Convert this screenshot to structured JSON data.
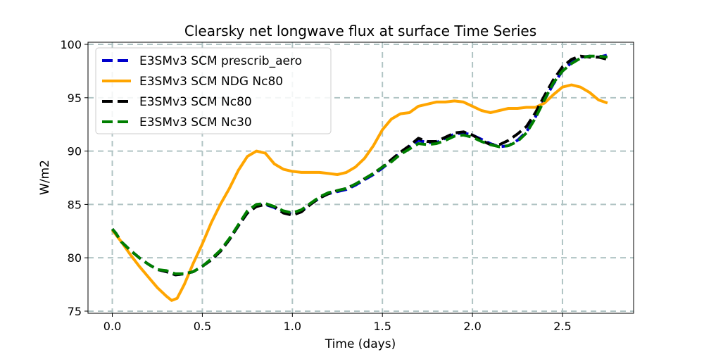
{
  "chart_data": {
    "type": "line",
    "title": "Clearsky net longwave flux at surface Time Series",
    "xlabel": "Time (days)",
    "ylabel": "W/m2",
    "xlim": [
      -0.135,
      2.895
    ],
    "ylim": [
      74.8,
      100.2
    ],
    "xticks": [
      0.0,
      0.5,
      1.0,
      1.5,
      2.0,
      2.5
    ],
    "xtick_labels": [
      "0.0",
      "0.5",
      "1.0",
      "1.5",
      "2.0",
      "2.5"
    ],
    "yticks": [
      75,
      80,
      85,
      90,
      95,
      100
    ],
    "ytick_labels": [
      "75",
      "80",
      "85",
      "90",
      "95",
      "100"
    ],
    "grid": true,
    "legend_position": "upper-left",
    "series": [
      {
        "name": "E3SMv3 SCM prescrib_aero",
        "color": "#0000cc",
        "style": "dashed",
        "x": [
          0.0,
          0.02,
          0.05,
          0.1,
          0.15,
          0.2,
          0.25,
          0.3,
          0.35,
          0.4,
          0.45,
          0.5,
          0.55,
          0.6,
          0.65,
          0.7,
          0.75,
          0.8,
          0.85,
          0.9,
          0.95,
          1.0,
          1.05,
          1.1,
          1.15,
          1.2,
          1.25,
          1.3,
          1.35,
          1.4,
          1.45,
          1.5,
          1.55,
          1.6,
          1.65,
          1.7,
          1.75,
          1.8,
          1.85,
          1.9,
          1.95,
          2.0,
          2.05,
          2.1,
          2.15,
          2.2,
          2.25,
          2.3,
          2.35,
          2.4,
          2.45,
          2.5,
          2.55,
          2.6,
          2.65,
          2.7,
          2.75
        ],
        "values": [
          82.7,
          82.3,
          81.5,
          80.7,
          80.0,
          79.4,
          78.9,
          78.7,
          78.4,
          78.5,
          78.7,
          79.2,
          79.8,
          80.6,
          81.7,
          83.0,
          84.2,
          84.9,
          85.0,
          84.7,
          84.3,
          84.1,
          84.4,
          85.0,
          85.6,
          86.0,
          86.2,
          86.4,
          86.8,
          87.3,
          87.8,
          88.4,
          89.1,
          89.8,
          90.4,
          91.0,
          90.8,
          90.8,
          91.2,
          91.6,
          91.7,
          91.5,
          91.1,
          90.7,
          90.4,
          90.5,
          91.0,
          91.8,
          93.2,
          94.8,
          96.3,
          97.5,
          98.3,
          98.8,
          98.9,
          98.8,
          99.0
        ]
      },
      {
        "name": "E3SMv3 SCM NDG Nc80",
        "color": "#ffa500",
        "style": "solid",
        "x": [
          0.0,
          0.05,
          0.1,
          0.15,
          0.2,
          0.25,
          0.3,
          0.33,
          0.36,
          0.4,
          0.45,
          0.5,
          0.55,
          0.6,
          0.65,
          0.7,
          0.75,
          0.8,
          0.85,
          0.9,
          0.95,
          1.0,
          1.05,
          1.1,
          1.15,
          1.2,
          1.25,
          1.3,
          1.35,
          1.4,
          1.45,
          1.5,
          1.55,
          1.6,
          1.65,
          1.7,
          1.75,
          1.8,
          1.85,
          1.9,
          1.95,
          2.0,
          2.05,
          2.1,
          2.15,
          2.2,
          2.25,
          2.3,
          2.35,
          2.4,
          2.45,
          2.5,
          2.55,
          2.6,
          2.65,
          2.7,
          2.75
        ],
        "values": [
          82.6,
          81.5,
          80.3,
          79.2,
          78.2,
          77.2,
          76.4,
          76.0,
          76.2,
          77.5,
          79.5,
          81.3,
          83.3,
          85.0,
          86.5,
          88.2,
          89.5,
          90.0,
          89.8,
          88.8,
          88.3,
          88.1,
          88.0,
          88.0,
          88.0,
          87.9,
          87.8,
          88.0,
          88.5,
          89.3,
          90.5,
          92.0,
          93.0,
          93.5,
          93.6,
          94.2,
          94.4,
          94.6,
          94.6,
          94.7,
          94.6,
          94.2,
          93.8,
          93.6,
          93.8,
          94.0,
          94.0,
          94.1,
          94.1,
          94.5,
          95.3,
          96.0,
          96.2,
          96.0,
          95.5,
          94.8,
          94.5
        ]
      },
      {
        "name": "E3SMv3 SCM Nc80",
        "color": "#000000",
        "style": "dashed",
        "x": [
          0.0,
          0.02,
          0.05,
          0.1,
          0.15,
          0.2,
          0.25,
          0.3,
          0.35,
          0.4,
          0.45,
          0.5,
          0.55,
          0.6,
          0.65,
          0.7,
          0.75,
          0.8,
          0.85,
          0.9,
          0.95,
          1.0,
          1.05,
          1.1,
          1.15,
          1.2,
          1.25,
          1.3,
          1.35,
          1.4,
          1.45,
          1.5,
          1.55,
          1.6,
          1.65,
          1.7,
          1.75,
          1.8,
          1.85,
          1.9,
          1.95,
          2.0,
          2.05,
          2.1,
          2.15,
          2.2,
          2.25,
          2.3,
          2.35,
          2.4,
          2.45,
          2.5,
          2.55,
          2.6,
          2.65,
          2.7,
          2.75
        ],
        "values": [
          82.7,
          82.3,
          81.5,
          80.7,
          80.0,
          79.4,
          78.9,
          78.7,
          78.4,
          78.5,
          78.7,
          79.2,
          79.8,
          80.6,
          81.7,
          83.0,
          84.2,
          84.8,
          85.0,
          84.8,
          84.2,
          84.0,
          84.3,
          85.0,
          85.6,
          86.0,
          86.3,
          86.5,
          86.9,
          87.4,
          87.9,
          88.5,
          89.2,
          89.9,
          90.5,
          91.2,
          90.9,
          90.9,
          91.3,
          91.7,
          91.8,
          91.5,
          91.0,
          90.6,
          90.6,
          91.0,
          91.6,
          92.3,
          93.6,
          95.2,
          96.7,
          97.9,
          98.6,
          98.9,
          98.8,
          98.8,
          98.6
        ]
      },
      {
        "name": "E3SMv3 SCM Nc30",
        "color": "#007f00",
        "style": "dashed",
        "x": [
          0.0,
          0.02,
          0.05,
          0.1,
          0.15,
          0.2,
          0.25,
          0.3,
          0.35,
          0.4,
          0.45,
          0.5,
          0.55,
          0.6,
          0.65,
          0.7,
          0.75,
          0.8,
          0.85,
          0.9,
          0.95,
          1.0,
          1.05,
          1.1,
          1.15,
          1.2,
          1.25,
          1.3,
          1.35,
          1.4,
          1.45,
          1.5,
          1.55,
          1.6,
          1.65,
          1.7,
          1.75,
          1.8,
          1.85,
          1.9,
          1.95,
          2.0,
          2.05,
          2.1,
          2.15,
          2.2,
          2.25,
          2.3,
          2.35,
          2.4,
          2.45,
          2.5,
          2.55,
          2.6,
          2.65,
          2.7,
          2.75
        ],
        "values": [
          82.7,
          82.3,
          81.5,
          80.7,
          80.0,
          79.4,
          78.9,
          78.8,
          78.5,
          78.5,
          78.7,
          79.2,
          79.9,
          80.7,
          81.8,
          83.1,
          84.4,
          85.0,
          85.1,
          84.8,
          84.4,
          84.2,
          84.5,
          85.1,
          85.7,
          86.1,
          86.3,
          86.5,
          86.9,
          87.4,
          87.9,
          88.5,
          89.0,
          89.7,
          90.2,
          90.7,
          90.6,
          90.7,
          91.0,
          91.4,
          91.5,
          91.3,
          90.9,
          90.6,
          90.4,
          90.5,
          90.9,
          91.7,
          93.1,
          94.8,
          96.4,
          97.5,
          98.2,
          98.7,
          98.9,
          98.9,
          98.8
        ]
      }
    ]
  }
}
